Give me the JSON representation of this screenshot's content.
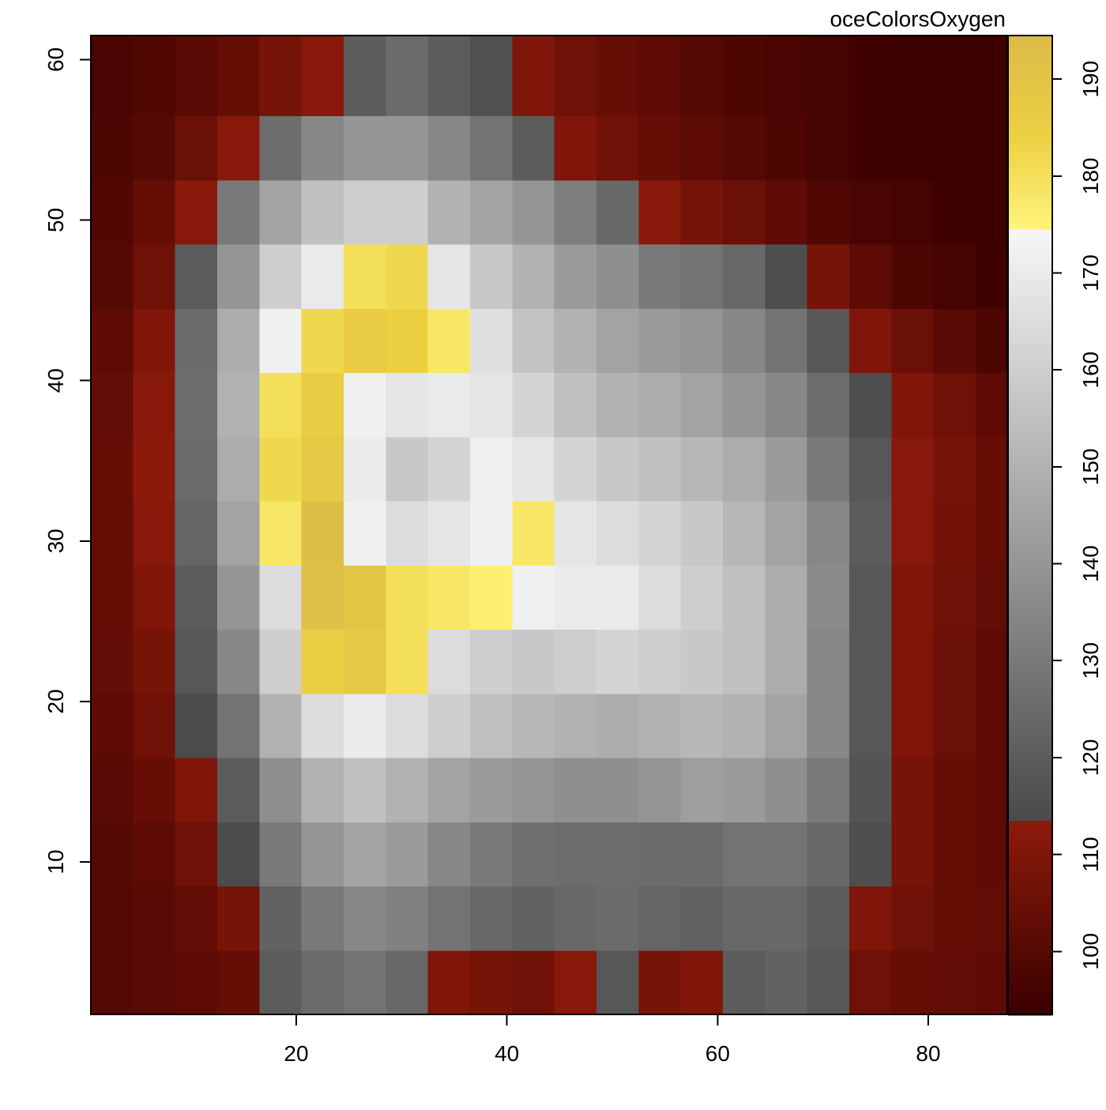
{
  "chart_data": {
    "type": "heatmap",
    "title": "oceColorsOxygen",
    "x": [
      2.5,
      6.5,
      10.5,
      14.5,
      18.5,
      22.5,
      26.5,
      30.5,
      34.5,
      38.5,
      42.5,
      46.5,
      50.5,
      54.5,
      58.5,
      62.5,
      66.5,
      70.5,
      74.5,
      78.5,
      82.5,
      86.5
    ],
    "y": [
      2.5,
      6.5,
      10.5,
      14.5,
      18.5,
      22.5,
      26.5,
      30.5,
      34.5,
      38.5,
      42.5,
      46.5,
      50.5,
      54.5,
      58.5
    ],
    "z": [
      [
        100,
        101,
        102,
        104,
        120,
        125,
        128,
        124,
        110,
        108,
        106,
        112,
        118,
        108,
        110,
        120,
        122,
        118,
        106,
        104,
        103,
        102
      ],
      [
        100,
        101,
        103,
        108,
        122,
        130,
        135,
        133,
        128,
        124,
        122,
        124,
        125,
        123,
        122,
        124,
        124,
        120,
        110,
        106,
        104,
        103
      ],
      [
        100,
        102,
        106,
        114,
        130,
        140,
        145,
        142,
        135,
        130,
        127,
        126,
        126,
        125,
        125,
        128,
        128,
        124,
        115,
        108,
        104,
        102
      ],
      [
        101,
        104,
        110,
        120,
        138,
        150,
        155,
        150,
        145,
        142,
        140,
        138,
        138,
        140,
        143,
        142,
        138,
        130,
        117,
        108,
        104,
        102
      ],
      [
        102,
        106,
        114,
        128,
        150,
        165,
        170,
        165,
        160,
        155,
        152,
        150,
        148,
        150,
        152,
        150,
        145,
        135,
        118,
        110,
        105,
        102
      ],
      [
        103,
        108,
        118,
        135,
        160,
        185,
        188,
        180,
        165,
        160,
        158,
        160,
        162,
        160,
        158,
        155,
        148,
        135,
        118,
        110,
        105,
        102
      ],
      [
        104,
        110,
        120,
        140,
        165,
        192,
        190,
        180,
        178,
        176,
        172,
        170,
        170,
        165,
        160,
        155,
        148,
        136,
        118,
        110,
        106,
        103
      ],
      [
        104,
        112,
        123,
        145,
        178,
        193,
        172,
        165,
        168,
        172,
        178,
        168,
        165,
        162,
        158,
        152,
        145,
        135,
        120,
        112,
        107,
        104
      ],
      [
        104,
        113,
        125,
        148,
        182,
        188,
        170,
        158,
        162,
        172,
        168,
        162,
        158,
        155,
        152,
        148,
        142,
        130,
        118,
        112,
        108,
        104
      ],
      [
        103,
        112,
        126,
        150,
        180,
        186,
        172,
        168,
        170,
        168,
        162,
        155,
        150,
        148,
        145,
        140,
        135,
        126,
        115,
        110,
        106,
        102
      ],
      [
        102,
        110,
        125,
        148,
        172,
        182,
        186,
        184,
        178,
        166,
        156,
        150,
        145,
        142,
        140,
        135,
        128,
        118,
        110,
        105,
        101,
        98
      ],
      [
        100,
        106,
        120,
        140,
        160,
        170,
        180,
        182,
        168,
        158,
        150,
        142,
        138,
        130,
        128,
        124,
        115,
        108,
        102,
        98,
        96,
        95
      ],
      [
        99,
        104,
        112,
        130,
        145,
        155,
        160,
        160,
        150,
        145,
        140,
        132,
        124,
        112,
        108,
        105,
        102,
        99,
        97,
        96,
        95,
        94
      ],
      [
        98,
        100,
        105,
        112,
        126,
        135,
        140,
        140,
        135,
        128,
        120,
        110,
        106,
        104,
        102,
        100,
        98,
        96,
        95,
        94,
        94,
        94
      ],
      [
        97,
        99,
        101,
        104,
        108,
        112,
        120,
        125,
        120,
        116,
        110,
        106,
        104,
        102,
        100,
        98,
        97,
        96,
        95,
        94,
        94,
        94
      ]
    ],
    "xlim": [
      0.5,
      87.5
    ],
    "ylim": [
      0.5,
      61.5
    ],
    "xticks": [
      20,
      40,
      60,
      80
    ],
    "yticks": [
      10,
      20,
      30,
      40,
      50,
      60
    ],
    "zlim": [
      93.5,
      194.5
    ],
    "zticks": [
      100,
      110,
      120,
      130,
      140,
      150,
      160,
      170,
      180,
      190
    ],
    "colormap": [
      [
        93.5,
        "#3a0000"
      ],
      [
        113.5,
        "#8e1b0b"
      ],
      [
        113.5,
        "#4a4a4a"
      ],
      [
        174.5,
        "#f7f7f7"
      ],
      [
        174.5,
        "#fff47c"
      ],
      [
        184,
        "#ecd042"
      ],
      [
        194.5,
        "#dcbb48"
      ]
    ]
  }
}
